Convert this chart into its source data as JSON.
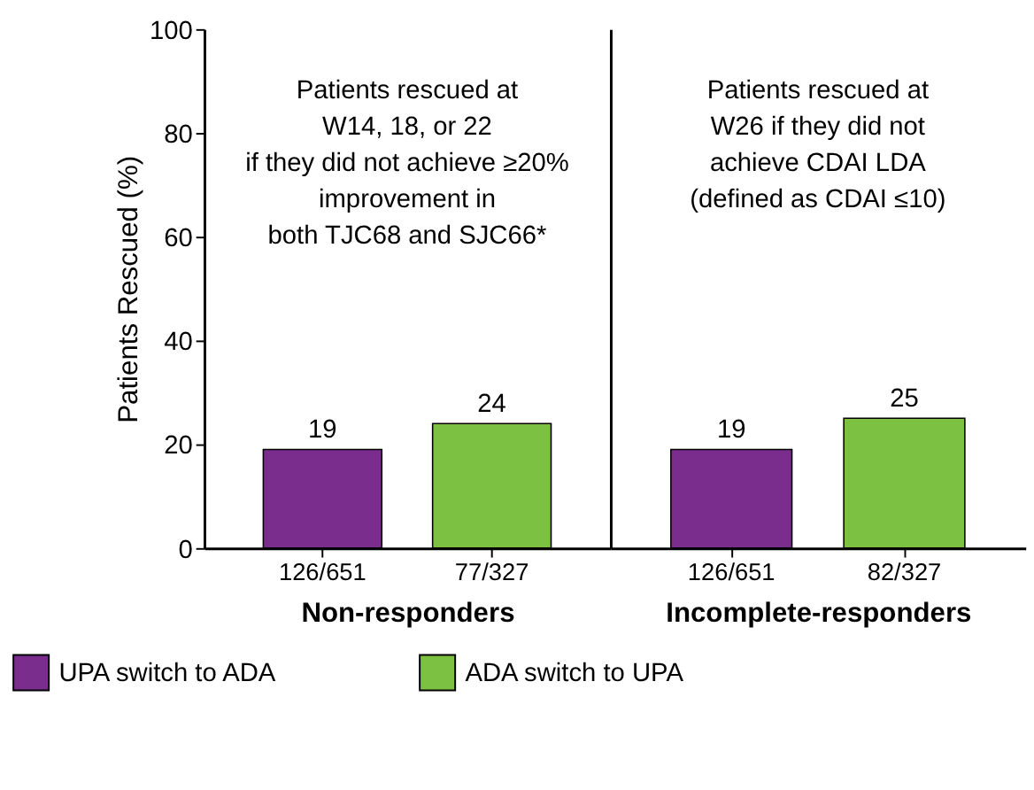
{
  "chart_data": [
    {
      "type": "bar",
      "ylabel": "Patients Rescued (%)",
      "xlabel": "Non-responders",
      "categories": [
        "126/651",
        "77/327"
      ],
      "series": [
        {
          "name": "UPA switch to ADA",
          "color": "#7b2d8e",
          "values": [
            19,
            null
          ]
        },
        {
          "name": "ADA switch to UPA",
          "color": "#7dc142",
          "values": [
            null,
            24
          ]
        }
      ],
      "ylim": [
        0,
        100
      ],
      "yticks": [
        0,
        20,
        40,
        60,
        80,
        100
      ],
      "data_labels": true,
      "legend": "bottom",
      "annotations": [
        "Patients rescued at\nW14, 18, or 22\nif they did not achieve ≥20%\nimprovement in\nboth TJC68 and SJC66*"
      ]
    },
    {
      "type": "bar",
      "xlabel": "Incomplete-responders",
      "categories": [
        "126/651",
        "82/327"
      ],
      "series": [
        {
          "name": "UPA switch to ADA",
          "color": "#7b2d8e",
          "values": [
            19,
            null
          ]
        },
        {
          "name": "ADA switch to UPA",
          "color": "#7dc142",
          "values": [
            null,
            25
          ]
        }
      ],
      "ylim": [
        0,
        100
      ],
      "yticks": [
        0,
        20,
        40,
        60,
        80,
        100
      ],
      "data_labels": true,
      "tick_labels": "x",
      "annotations": [
        "Patients rescued at\nW26 if they did not\nachieve CDAI LDA\n(defined as CDAI ≤10)"
      ]
    }
  ]
}
